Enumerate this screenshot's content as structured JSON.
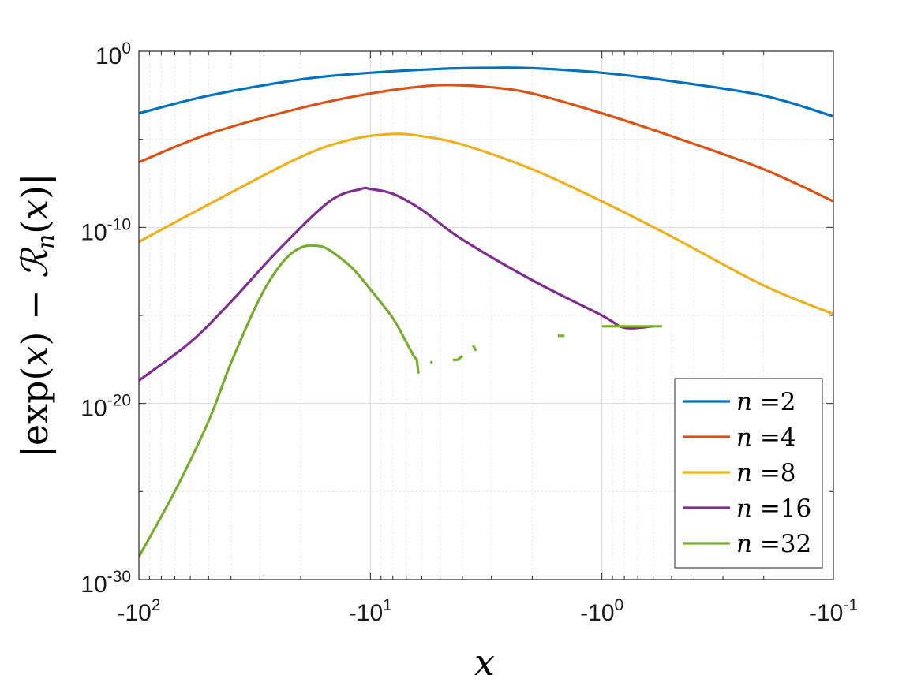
{
  "chart_data": {
    "type": "line",
    "xlabel": "x",
    "ylabel": "|exp(x) − ℛ_n(x)|",
    "xscale": "log-negative",
    "yscale": "log",
    "xlim": [
      -100,
      -0.1
    ],
    "ylim": [
      1e-30,
      1
    ],
    "grid": true,
    "legend_position": "bottom-right",
    "x_ticks": [
      {
        "base": "-10",
        "exp": "2"
      },
      {
        "base": "-10",
        "exp": "1"
      },
      {
        "base": "-10",
        "exp": "0"
      },
      {
        "base": "-10",
        "exp": "-1"
      }
    ],
    "y_ticks": [
      {
        "base": "10",
        "exp": "0"
      },
      {
        "base": "10",
        "exp": "-10"
      },
      {
        "base": "10",
        "exp": "-20"
      },
      {
        "base": "10",
        "exp": "-30"
      }
    ],
    "series": [
      {
        "name": "n =2",
        "legend_n": "n",
        "legend_value": "=2",
        "color": "#0072BD",
        "points": [
          [
            -100,
            0.0003
          ],
          [
            -50,
            0.003
          ],
          [
            -20,
            0.025
          ],
          [
            -10,
            0.06
          ],
          [
            -5,
            0.1
          ],
          [
            -3,
            0.115
          ],
          [
            -2,
            0.11
          ],
          [
            -1,
            0.06
          ],
          [
            -0.5,
            0.02
          ],
          [
            -0.2,
            0.003
          ],
          [
            -0.1,
            0.0002
          ]
        ]
      },
      {
        "name": "n =4",
        "legend_n": "n",
        "legend_value": "=4",
        "color": "#D95319",
        "points": [
          [
            -100,
            5e-07
          ],
          [
            -50,
            2e-05
          ],
          [
            -20,
            0.0006
          ],
          [
            -10,
            0.004
          ],
          [
            -6,
            0.01
          ],
          [
            -4.5,
            0.012
          ],
          [
            -3,
            0.009
          ],
          [
            -2,
            0.004
          ],
          [
            -1,
            0.0003
          ],
          [
            -0.5,
            1.5e-05
          ],
          [
            -0.2,
            2e-07
          ],
          [
            -0.1,
            3e-09
          ]
        ]
      },
      {
        "name": "n =8",
        "legend_n": "n",
        "legend_value": "=8",
        "color": "#EDB120",
        "points": [
          [
            -100,
            1.5e-11
          ],
          [
            -50,
            2e-09
          ],
          [
            -20,
            1e-06
          ],
          [
            -12,
            1e-05
          ],
          [
            -8,
            2e-05
          ],
          [
            -6,
            1.5e-05
          ],
          [
            -4,
            5e-06
          ],
          [
            -2,
            2e-07
          ],
          [
            -1,
            3e-09
          ],
          [
            -0.5,
            3e-11
          ],
          [
            -0.2,
            5e-14
          ],
          [
            -0.1,
            1.2e-15
          ]
        ]
      },
      {
        "name": "n =16",
        "legend_n": "n",
        "legend_value": "=16",
        "color": "#7E2F8E",
        "points": [
          [
            -100,
            2e-19
          ],
          [
            -60,
            3e-17
          ],
          [
            -40,
            6e-15
          ],
          [
            -25,
            5e-12
          ],
          [
            -15,
            3e-09
          ],
          [
            -11,
            1.5e-08
          ],
          [
            -10,
            1.5e-08
          ],
          [
            -8,
            8e-09
          ],
          [
            -6,
            1e-09
          ],
          [
            -4,
            2e-11
          ],
          [
            -2,
            1e-13
          ],
          [
            -1,
            1e-15
          ],
          [
            -0.8,
            2e-16
          ],
          [
            -0.6,
            2.4e-16
          ]
        ]
      },
      {
        "name": "n =32",
        "legend_n": "n",
        "legend_value": "=32",
        "color": "#77AC30",
        "points": [
          [
            -100,
            2e-29
          ],
          [
            -70,
            1e-25
          ],
          [
            -50,
            1e-21
          ],
          [
            -40,
            2e-18
          ],
          [
            -30,
            1e-14
          ],
          [
            -24,
            1e-12
          ],
          [
            -20,
            7e-12
          ],
          [
            -17,
            9e-12
          ],
          [
            -15,
            5e-12
          ],
          [
            -12,
            5e-13
          ],
          [
            -10,
            3e-14
          ],
          [
            -8,
            7e-16
          ],
          [
            -7,
            3e-17
          ],
          [
            -6.5,
            5e-18
          ]
        ],
        "fragments": [
          [
            [
              -6.5,
              5e-18
            ],
            [
              -6.3,
              3e-18
            ],
            [
              -6.2,
              5e-19
            ]
          ],
          [
            [
              -5.5,
              2e-18
            ],
            [
              -5.4,
              2.4e-18
            ]
          ],
          [
            [
              -4.4,
              3e-18
            ],
            [
              -4.2,
              3e-18
            ],
            [
              -4,
              5e-18
            ]
          ],
          [
            [
              -3.6,
              2e-17
            ],
            [
              -3.5,
              1e-17
            ]
          ],
          [
            [
              -1.55,
              7e-17
            ],
            [
              -1.45,
              7e-17
            ]
          ],
          [
            [
              -1,
              2.4e-16
            ],
            [
              -0.55,
              2.4e-16
            ]
          ]
        ]
      }
    ]
  }
}
